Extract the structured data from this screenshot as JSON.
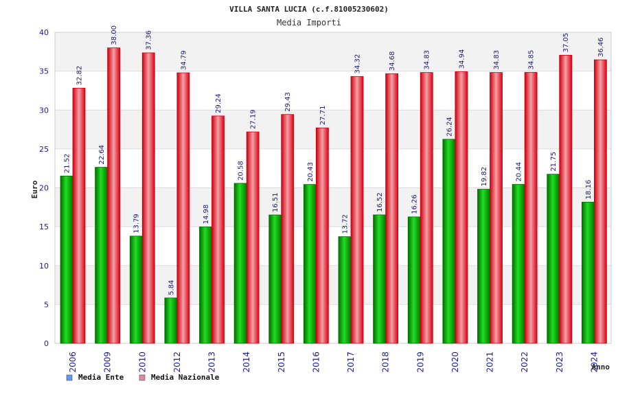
{
  "chart_data": {
    "type": "bar",
    "title": "VILLA SANTA LUCIA (c.f.81005230602)",
    "subtitle": "Media Importi",
    "ylabel": "Euro",
    "xlabel": "Anno",
    "ylim": [
      0,
      40
    ],
    "yticks": [
      0,
      5,
      10,
      15,
      20,
      25,
      30,
      35,
      40
    ],
    "grid": true,
    "legend_position": "bottom-left",
    "categories": [
      "2006",
      "2009",
      "2010",
      "2012",
      "2013",
      "2014",
      "2015",
      "2016",
      "2017",
      "2018",
      "2019",
      "2020",
      "2021",
      "2022",
      "2023",
      "2024"
    ],
    "series": [
      {
        "name": "Media Ente",
        "color": "#00aa00",
        "legend_color": "#6699ee",
        "values": [
          21.52,
          22.64,
          13.79,
          5.84,
          14.98,
          20.58,
          16.51,
          20.43,
          13.72,
          16.52,
          16.26,
          26.24,
          19.82,
          20.44,
          21.75,
          18.16
        ],
        "labels": [
          "21.52",
          "22.64",
          "13.79",
          "5.84",
          "14.98",
          "20.58",
          "16.51",
          "20.43",
          "13.72",
          "16.52",
          "16.26",
          "26.24",
          "19.82",
          "20.44",
          "21.75",
          "18.16"
        ]
      },
      {
        "name": "Media Nazionale",
        "color": "#ee1122",
        "legend_color": "#dd88aa",
        "values": [
          32.82,
          38.0,
          37.36,
          34.79,
          29.24,
          27.19,
          29.43,
          27.71,
          34.32,
          34.68,
          34.83,
          34.94,
          34.83,
          34.85,
          37.05,
          36.46
        ],
        "labels": [
          "32.82",
          "38.00",
          "37.36",
          "34.79",
          "29.24",
          "27.19",
          "29.43",
          "27.71",
          "34.32",
          "34.68",
          "34.83",
          "34.94",
          "34.83",
          "34.85",
          "37.05",
          "36.46"
        ]
      }
    ]
  }
}
